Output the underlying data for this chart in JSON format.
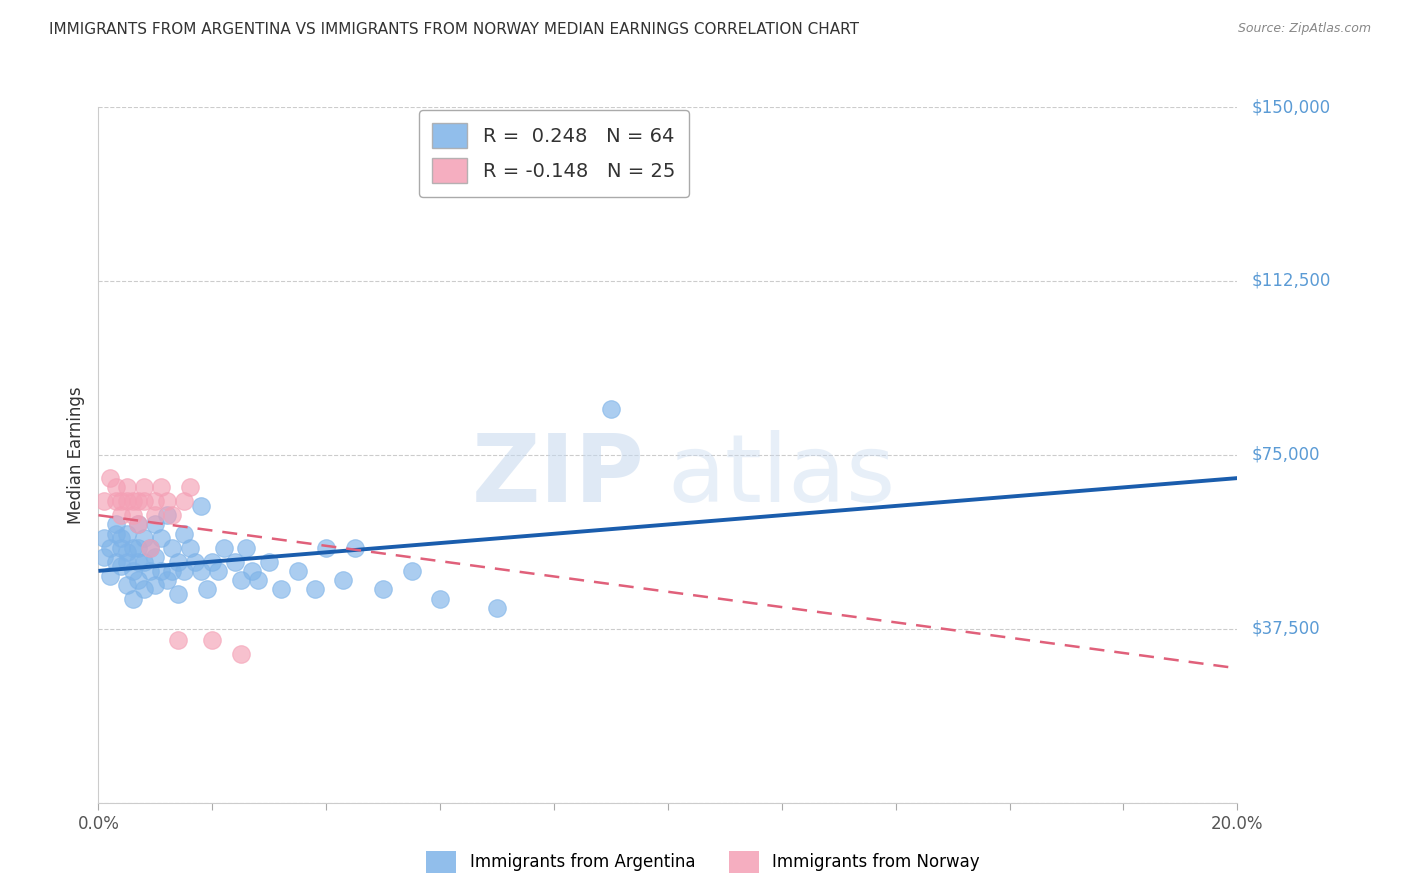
{
  "title": "IMMIGRANTS FROM ARGENTINA VS IMMIGRANTS FROM NORWAY MEDIAN EARNINGS CORRELATION CHART",
  "source": "Source: ZipAtlas.com",
  "ylabel": "Median Earnings",
  "yticks": [
    0,
    37500,
    75000,
    112500,
    150000
  ],
  "ytick_labels": [
    "",
    "$37,500",
    "$75,000",
    "$112,500",
    "$150,000"
  ],
  "xlim": [
    0.0,
    0.2
  ],
  "ylim": [
    0,
    150000
  ],
  "legend_r_argentina": "R =  0.248",
  "legend_n_argentina": "N = 64",
  "legend_r_norway": "R = -0.148",
  "legend_n_norway": "N = 25",
  "color_argentina": "#7EB3E8",
  "color_norway": "#F4A0B5",
  "color_trendline_argentina": "#1A5DAD",
  "color_trendline_norway": "#E0607A",
  "color_ytick_labels": "#5B9BD5",
  "watermark_zip": "ZIP",
  "watermark_atlas": "atlas",
  "trendline_arg_x0": 0.0,
  "trendline_arg_y0": 50000,
  "trendline_arg_x1": 0.2,
  "trendline_arg_y1": 70000,
  "trendline_nor_x0": 0.0,
  "trendline_nor_y0": 62000,
  "trendline_nor_x1": 0.2,
  "trendline_nor_y1": 29000,
  "argentina_x": [
    0.001,
    0.001,
    0.002,
    0.002,
    0.003,
    0.003,
    0.003,
    0.004,
    0.004,
    0.004,
    0.005,
    0.005,
    0.005,
    0.005,
    0.006,
    0.006,
    0.006,
    0.007,
    0.007,
    0.007,
    0.007,
    0.008,
    0.008,
    0.008,
    0.009,
    0.009,
    0.01,
    0.01,
    0.01,
    0.011,
    0.011,
    0.012,
    0.012,
    0.013,
    0.013,
    0.014,
    0.014,
    0.015,
    0.015,
    0.016,
    0.017,
    0.018,
    0.018,
    0.019,
    0.02,
    0.021,
    0.022,
    0.024,
    0.025,
    0.026,
    0.027,
    0.028,
    0.03,
    0.032,
    0.035,
    0.038,
    0.04,
    0.043,
    0.045,
    0.05,
    0.055,
    0.06,
    0.07,
    0.09
  ],
  "argentina_y": [
    57000,
    53000,
    55000,
    49000,
    58000,
    52000,
    60000,
    55000,
    51000,
    57000,
    54000,
    58000,
    47000,
    52000,
    55000,
    50000,
    44000,
    60000,
    55000,
    52000,
    48000,
    57000,
    52000,
    46000,
    55000,
    50000,
    60000,
    53000,
    47000,
    57000,
    50000,
    62000,
    48000,
    55000,
    50000,
    52000,
    45000,
    58000,
    50000,
    55000,
    52000,
    64000,
    50000,
    46000,
    52000,
    50000,
    55000,
    52000,
    48000,
    55000,
    50000,
    48000,
    52000,
    46000,
    50000,
    46000,
    55000,
    48000,
    55000,
    46000,
    50000,
    44000,
    42000,
    85000
  ],
  "norway_x": [
    0.001,
    0.002,
    0.003,
    0.003,
    0.004,
    0.004,
    0.005,
    0.005,
    0.006,
    0.006,
    0.007,
    0.007,
    0.008,
    0.008,
    0.009,
    0.01,
    0.01,
    0.011,
    0.012,
    0.013,
    0.014,
    0.015,
    0.016,
    0.02,
    0.025
  ],
  "norway_y": [
    65000,
    70000,
    65000,
    68000,
    65000,
    62000,
    68000,
    65000,
    65000,
    62000,
    65000,
    60000,
    68000,
    65000,
    55000,
    65000,
    62000,
    68000,
    65000,
    62000,
    35000,
    65000,
    68000,
    35000,
    32000
  ]
}
